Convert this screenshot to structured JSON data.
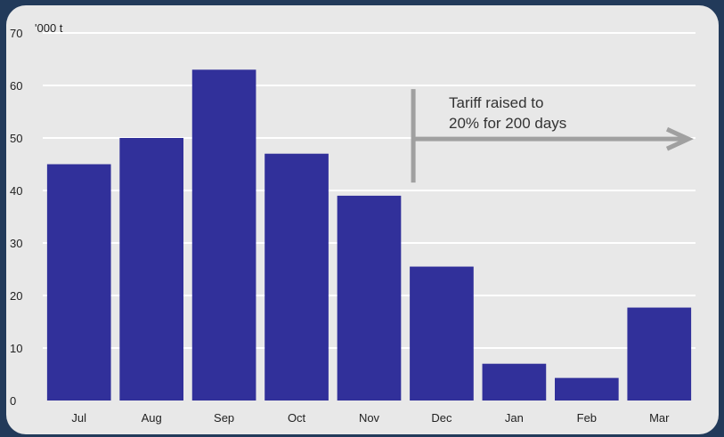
{
  "chart_data": {
    "type": "bar",
    "title": "",
    "unit_label": "'000 t",
    "xlabel": "",
    "ylabel": "",
    "categories": [
      "Jul",
      "Aug",
      "Sep",
      "Oct",
      "Nov",
      "Dec",
      "Jan",
      "Feb",
      "Mar"
    ],
    "values": [
      45,
      50,
      63,
      47,
      39,
      25.5,
      7,
      4.3,
      17.7
    ],
    "ylim": [
      0,
      70
    ],
    "yticks": [
      0,
      10,
      20,
      30,
      40,
      50,
      60,
      70
    ],
    "grid": true,
    "colors": {
      "bar": "#31309a",
      "grid": "#ffffff",
      "background": "#e8e8e8",
      "annotation": "#a0a0a0"
    },
    "annotation": {
      "line1": "Tariff raised to",
      "line2": "20% for 200 days",
      "start_category": "Dec"
    }
  }
}
